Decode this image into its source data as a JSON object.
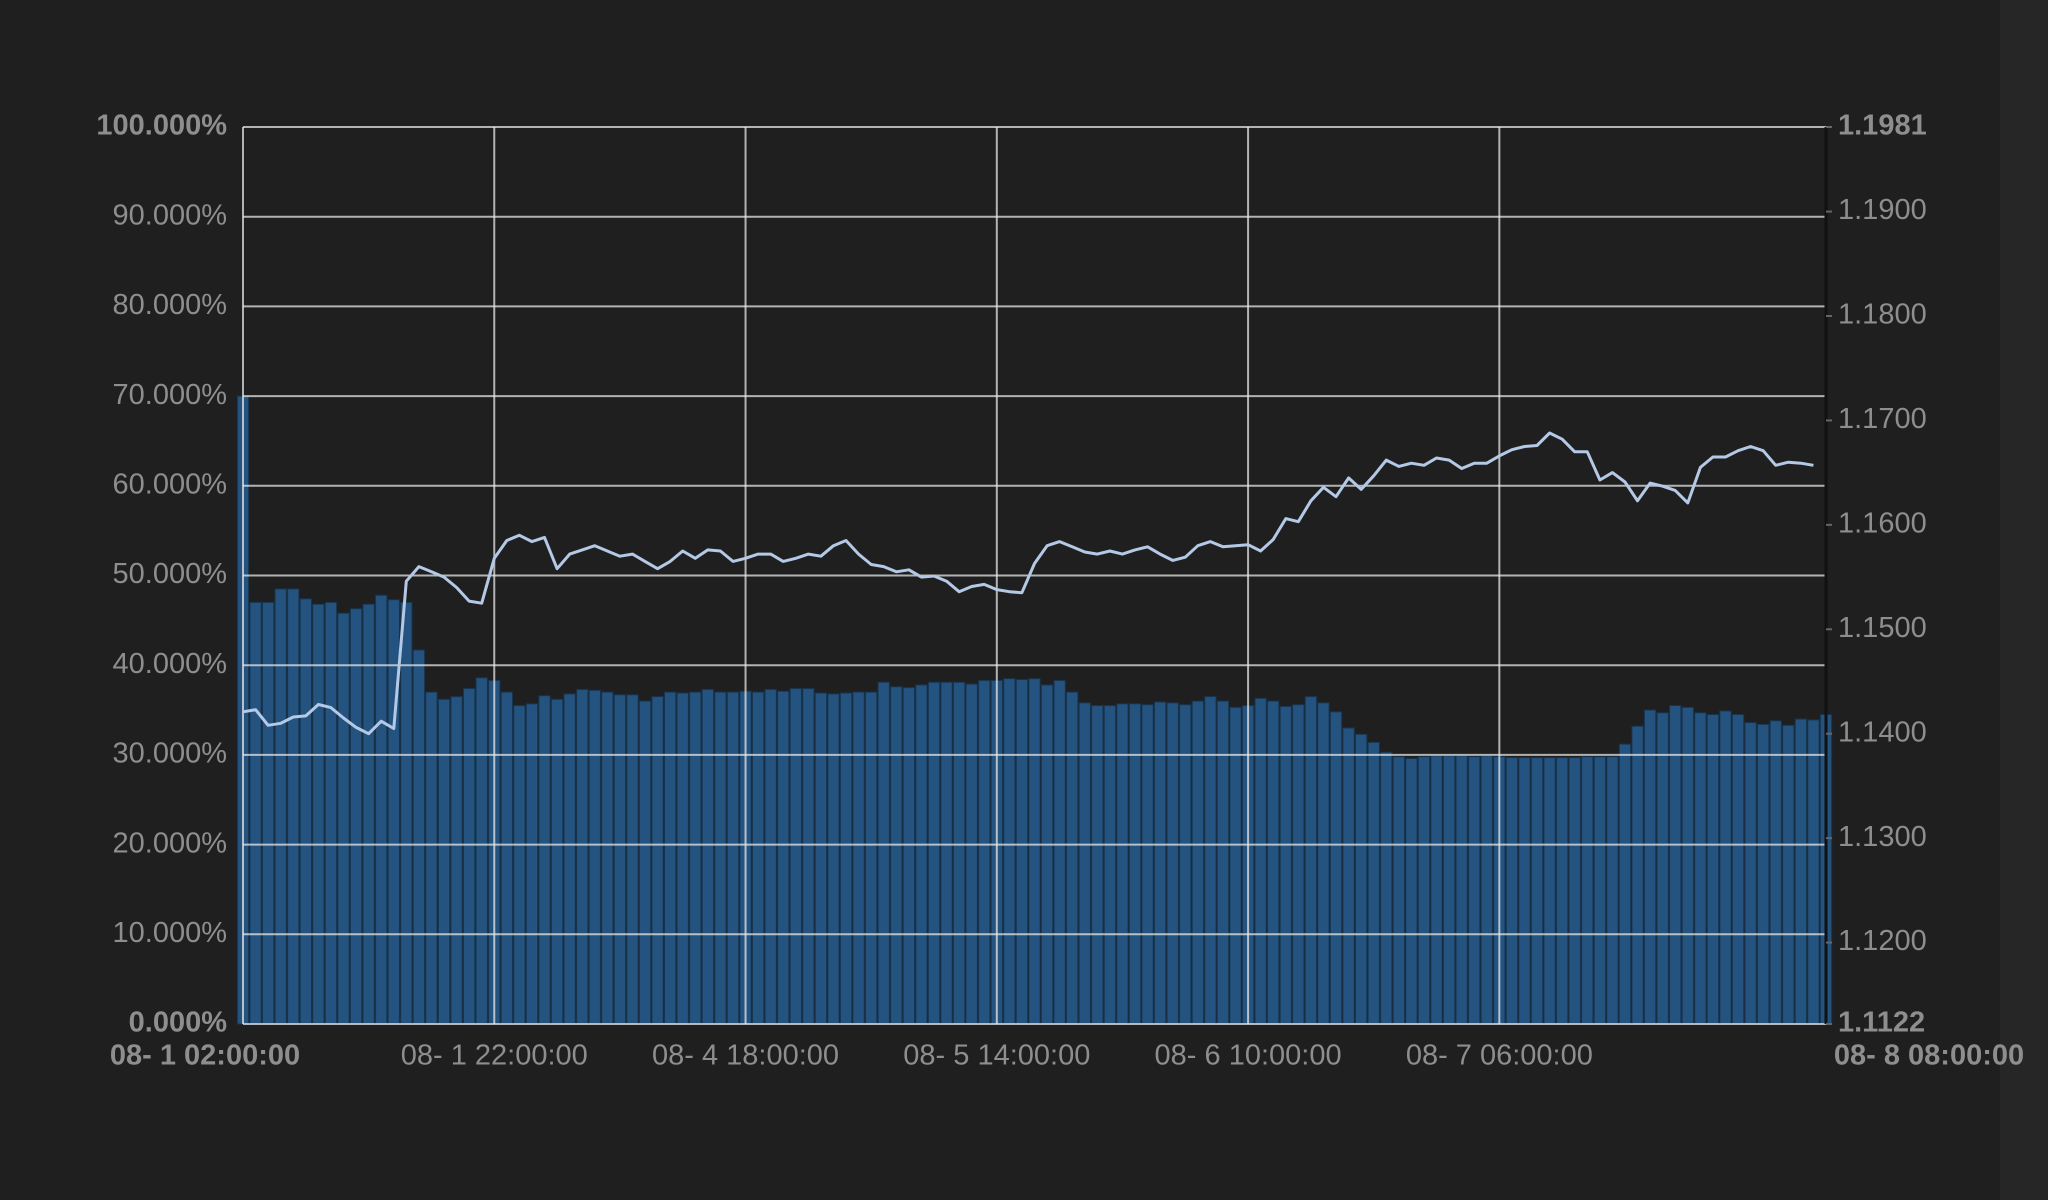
{
  "chart_data": {
    "type": "bar-line",
    "categories": [
      "08- 1 02:00:00",
      null,
      null,
      null,
      null,
      null,
      null,
      null,
      null,
      null,
      null,
      null,
      null,
      null,
      null,
      null,
      null,
      null,
      null,
      null,
      "08- 1 22:00:00",
      null,
      null,
      null,
      null,
      null,
      null,
      null,
      null,
      null,
      null,
      null,
      null,
      null,
      null,
      null,
      null,
      null,
      null,
      null,
      "08- 4 18:00:00",
      null,
      null,
      null,
      null,
      null,
      null,
      null,
      null,
      null,
      null,
      null,
      null,
      null,
      null,
      null,
      null,
      null,
      null,
      null,
      "08- 5 14:00:00",
      null,
      null,
      null,
      null,
      null,
      null,
      null,
      null,
      null,
      null,
      null,
      null,
      null,
      null,
      null,
      null,
      null,
      null,
      null,
      "08- 6 10:00:00",
      null,
      null,
      null,
      null,
      null,
      null,
      null,
      null,
      null,
      null,
      null,
      null,
      null,
      null,
      null,
      null,
      null,
      null,
      null,
      "08- 7 06:00:00",
      null,
      null,
      null,
      null,
      null,
      null,
      null,
      null,
      null,
      null,
      null,
      null,
      null,
      null,
      null,
      null,
      null,
      null,
      null,
      null,
      null,
      null,
      null,
      null,
      null,
      "08- 8 08:00:00"
    ],
    "series": [
      {
        "type": "bar",
        "color": "#245380",
        "values": [
          70,
          47,
          47,
          48.5,
          48.5,
          47.4,
          46.8,
          47,
          45.8,
          46.3,
          46.8,
          47.8,
          47.3,
          47,
          41.7,
          37,
          36.2,
          36.5,
          37.4,
          38.6,
          38.3,
          37,
          35.5,
          35.7,
          36.6,
          36.2,
          36.8,
          37.3,
          37.2,
          37,
          36.7,
          36.7,
          36,
          36.5,
          37,
          36.9,
          37,
          37.3,
          37,
          37,
          37.1,
          37,
          37.3,
          37.1,
          37.4,
          37.4,
          36.9,
          36.8,
          36.9,
          37,
          37,
          38.1,
          37.6,
          37.5,
          37.8,
          38.1,
          38.1,
          38.1,
          37.9,
          38.3,
          38.3,
          38.5,
          38.4,
          38.5,
          37.8,
          38.3,
          37,
          35.8,
          35.5,
          35.5,
          35.7,
          35.7,
          35.6,
          35.9,
          35.8,
          35.6,
          36,
          36.5,
          36,
          35.3,
          35.5,
          36.3,
          36,
          35.4,
          35.6,
          36.5,
          35.8,
          34.8,
          33,
          32.3,
          31.4,
          30.3,
          29.8,
          29.6,
          29.8,
          29.9,
          29.9,
          29.9,
          29.8,
          29.9,
          29.8,
          29.7,
          29.7,
          29.7,
          29.7,
          29.7,
          29.7,
          29.8,
          29.8,
          29.8,
          31.2,
          33.2,
          35,
          34.7,
          35.5,
          35.3,
          34.7,
          34.5,
          34.9,
          34.5,
          33.6,
          33.4,
          33.8,
          33.3,
          34,
          33.9,
          34.5
        ]
      },
      {
        "type": "line",
        "axis": "y2",
        "color": "#b4c9e6",
        "values": [
          1.1421,
          1.1423,
          1.1408,
          1.141,
          1.1416,
          1.1417,
          1.1428,
          1.1425,
          1.1415,
          1.1406,
          1.14,
          1.1412,
          1.1405,
          1.1546,
          1.156,
          1.1555,
          1.155,
          1.154,
          1.1527,
          1.1525,
          1.1568,
          1.1585,
          1.159,
          1.1584,
          1.1588,
          1.1558,
          1.1572,
          1.1576,
          1.158,
          1.1575,
          1.157,
          1.1572,
          1.1565,
          1.1558,
          1.1565,
          1.1575,
          1.1568,
          1.1576,
          1.1575,
          1.1565,
          1.1568,
          1.1572,
          1.1572,
          1.1565,
          1.1568,
          1.1572,
          1.157,
          1.158,
          1.1585,
          1.1572,
          1.1562,
          1.156,
          1.1555,
          1.1557,
          1.155,
          1.1551,
          1.1546,
          1.1536,
          1.1541,
          1.1543,
          1.1538,
          1.1536,
          1.1535,
          1.1563,
          1.158,
          1.1584,
          1.1579,
          1.1574,
          1.1572,
          1.1575,
          1.1572,
          1.1576,
          1.1579,
          1.1572,
          1.1566,
          1.1569,
          1.158,
          1.1584,
          1.1579,
          1.158,
          1.1581,
          1.1575,
          1.1586,
          1.1606,
          1.1603,
          1.1623,
          1.1636,
          1.1627,
          1.1645,
          1.1634,
          1.1647,
          1.1662,
          1.1656,
          1.1659,
          1.1657,
          1.1664,
          1.1662,
          1.1654,
          1.1659,
          1.1659,
          1.1666,
          1.1672,
          1.1675,
          1.1676,
          1.1688,
          1.1682,
          1.167,
          1.167,
          1.1643,
          1.165,
          1.1641,
          1.1623,
          1.164,
          1.1637,
          1.1633,
          1.1621,
          1.1655,
          1.1665,
          1.1665,
          1.1671,
          1.1675,
          1.1671,
          1.1657,
          1.166,
          1.1659,
          1.1657,
          null
        ]
      }
    ],
    "ylim": [
      0,
      100
    ],
    "yticks": [
      {
        "value": 0,
        "label": "0.000%"
      },
      {
        "value": 10,
        "label": "10.000%"
      },
      {
        "value": 20,
        "label": "20.000%"
      },
      {
        "value": 30,
        "label": "30.000%"
      },
      {
        "value": 40,
        "label": "40.000%"
      },
      {
        "value": 50,
        "label": "50.000%"
      },
      {
        "value": 60,
        "label": "60.000%"
      },
      {
        "value": 70,
        "label": "70.000%"
      },
      {
        "value": 80,
        "label": "80.000%"
      },
      {
        "value": 90,
        "label": "90.000%"
      },
      {
        "value": 100,
        "label": "100.000%"
      }
    ],
    "y2lim": [
      1.1122,
      1.1981
    ],
    "y2ticks": [
      1.1122,
      {
        "value": 1.12,
        "label": "1.1200"
      },
      {
        "value": 1.13,
        "label": "1.1300"
      },
      {
        "value": 1.14,
        "label": "1.1400"
      },
      {
        "value": 1.15,
        "label": "1.1500"
      },
      {
        "value": 1.16,
        "label": "1.1600"
      },
      {
        "value": 1.17,
        "label": "1.1700"
      },
      {
        "value": 1.18,
        "label": "1.1800"
      },
      {
        "value": 1.19,
        "label": "1.1900"
      },
      1.1981
    ],
    "grid": true
  }
}
